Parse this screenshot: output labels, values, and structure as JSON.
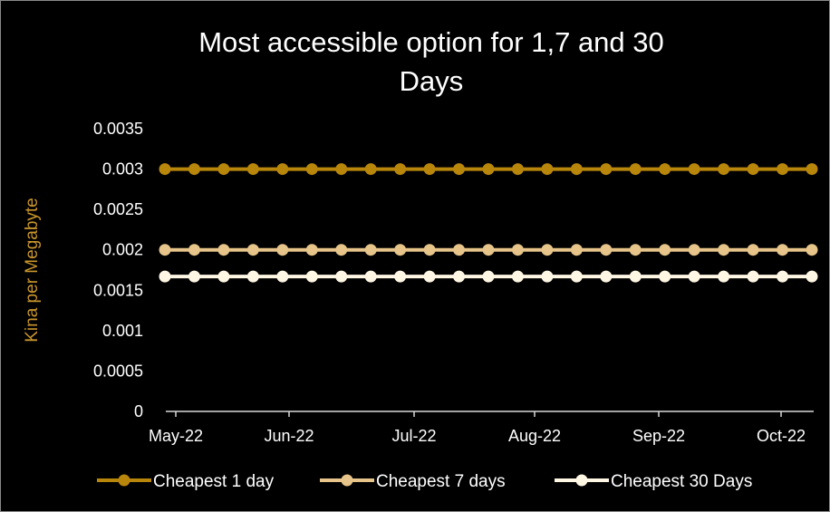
{
  "chart_data": {
    "type": "line",
    "title": "Most accessible option for 1,7 and 30 Days",
    "title_lines": [
      "Most accessible option for 1,7 and 30",
      "Days"
    ],
    "xlabel": "",
    "ylabel": "Kina per Megabyte",
    "ylim": [
      0,
      0.0035
    ],
    "yticks": [
      "0",
      "0.0005",
      "0.001",
      "0.0015",
      "0.002",
      "0.0025",
      "0.003",
      "0.0035"
    ],
    "ytick_values": [
      0,
      0.0005,
      0.001,
      0.0015,
      0.002,
      0.0025,
      0.003,
      0.0035
    ],
    "xticks": [
      "May-22",
      "Jun-22",
      "Jul-22",
      "Aug-22",
      "Sep-22",
      "Oct-22"
    ],
    "points_per_series": 23,
    "grid": false,
    "legend_position": "bottom",
    "series": [
      {
        "name": "Cheapest 1 day",
        "color": "#b8860b",
        "values": [
          0.003,
          0.003,
          0.003,
          0.003,
          0.003,
          0.003,
          0.003,
          0.003,
          0.003,
          0.003,
          0.003,
          0.003,
          0.003,
          0.003,
          0.003,
          0.003,
          0.003,
          0.003,
          0.003,
          0.003,
          0.003,
          0.003,
          0.003
        ]
      },
      {
        "name": "Cheapest 7 days",
        "color": "#e6c48a",
        "values": [
          0.002,
          0.002,
          0.002,
          0.002,
          0.002,
          0.002,
          0.002,
          0.002,
          0.002,
          0.002,
          0.002,
          0.002,
          0.002,
          0.002,
          0.002,
          0.002,
          0.002,
          0.002,
          0.002,
          0.002,
          0.002,
          0.002,
          0.002
        ]
      },
      {
        "name": "Cheapest 30 Days",
        "color": "#fff6e3",
        "values": [
          0.00167,
          0.00167,
          0.00167,
          0.00167,
          0.00167,
          0.00167,
          0.00167,
          0.00167,
          0.00167,
          0.00167,
          0.00167,
          0.00167,
          0.00167,
          0.00167,
          0.00167,
          0.00167,
          0.00167,
          0.00167,
          0.00167,
          0.00167,
          0.00167,
          0.00167,
          0.00167
        ]
      }
    ],
    "colors": {
      "axis": "#d9d9d9",
      "ylabel": "#c8952c",
      "text": "#ffffff",
      "background": "#000000"
    }
  }
}
